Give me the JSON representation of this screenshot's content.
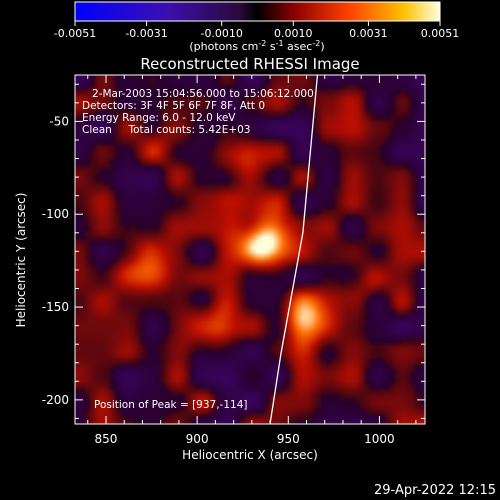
{
  "chart_data": {
    "type": "heatmap",
    "title": "Reconstructed RHESSI Image",
    "xlabel": "Heliocentric X (arcsec)",
    "ylabel": "Heliocentric Y (arcsec)",
    "xlim": [
      833,
      1025
    ],
    "ylim": [
      -213,
      -25
    ],
    "xticks": [
      850,
      900,
      950,
      1000
    ],
    "yticks": [
      -50,
      -100,
      -150,
      -200
    ],
    "colorbar": {
      "ticks": [
        "-0.0051",
        "-0.0031",
        "-0.0010",
        "0.0010",
        "0.0031",
        "0.0051"
      ],
      "min": -0.0051,
      "max": 0.0051,
      "units_prefix": "(photons cm",
      "units_sup1": "-2",
      "units_mid": " s",
      "units_sup2": "-1",
      "units_mid2": " asec",
      "units_sup3": "-2",
      "units_suffix": ")"
    },
    "info_lines": [
      "2-Mar-2003 15:04:56.000 to 15:06:12.000",
      "Detectors: 3F 4F 5F 6F 7F 8F, Att 0",
      "Energy Range: 6.0 - 12.0 keV",
      "Clean     Total counts: 5.42E+03"
    ],
    "peak_label": "Position of Peak = [937,-114]",
    "peak": [
      937,
      -114
    ],
    "sources": [
      {
        "x": 937,
        "y": -114,
        "value": 0.0051
      },
      {
        "x": 960,
        "y": -155,
        "value": 0.0034
      },
      {
        "x": 905,
        "y": -160,
        "value": 0.0026
      },
      {
        "x": 872,
        "y": -125,
        "value": 0.0021
      },
      {
        "x": 925,
        "y": -75,
        "value": 0.0018
      },
      {
        "x": 990,
        "y": -140,
        "value": 0.0015
      },
      {
        "x": 880,
        "y": -60,
        "value": 0.0012
      }
    ],
    "limb_arc": [
      [
        966,
        -25
      ],
      [
        958,
        -110
      ],
      [
        946,
        -175
      ],
      [
        940,
        -213
      ]
    ]
  },
  "timestamp": "29-Apr-2022 12:15",
  "colors": {
    "background": "#000000",
    "text": "#ffffff",
    "limb": "#ffffff"
  }
}
